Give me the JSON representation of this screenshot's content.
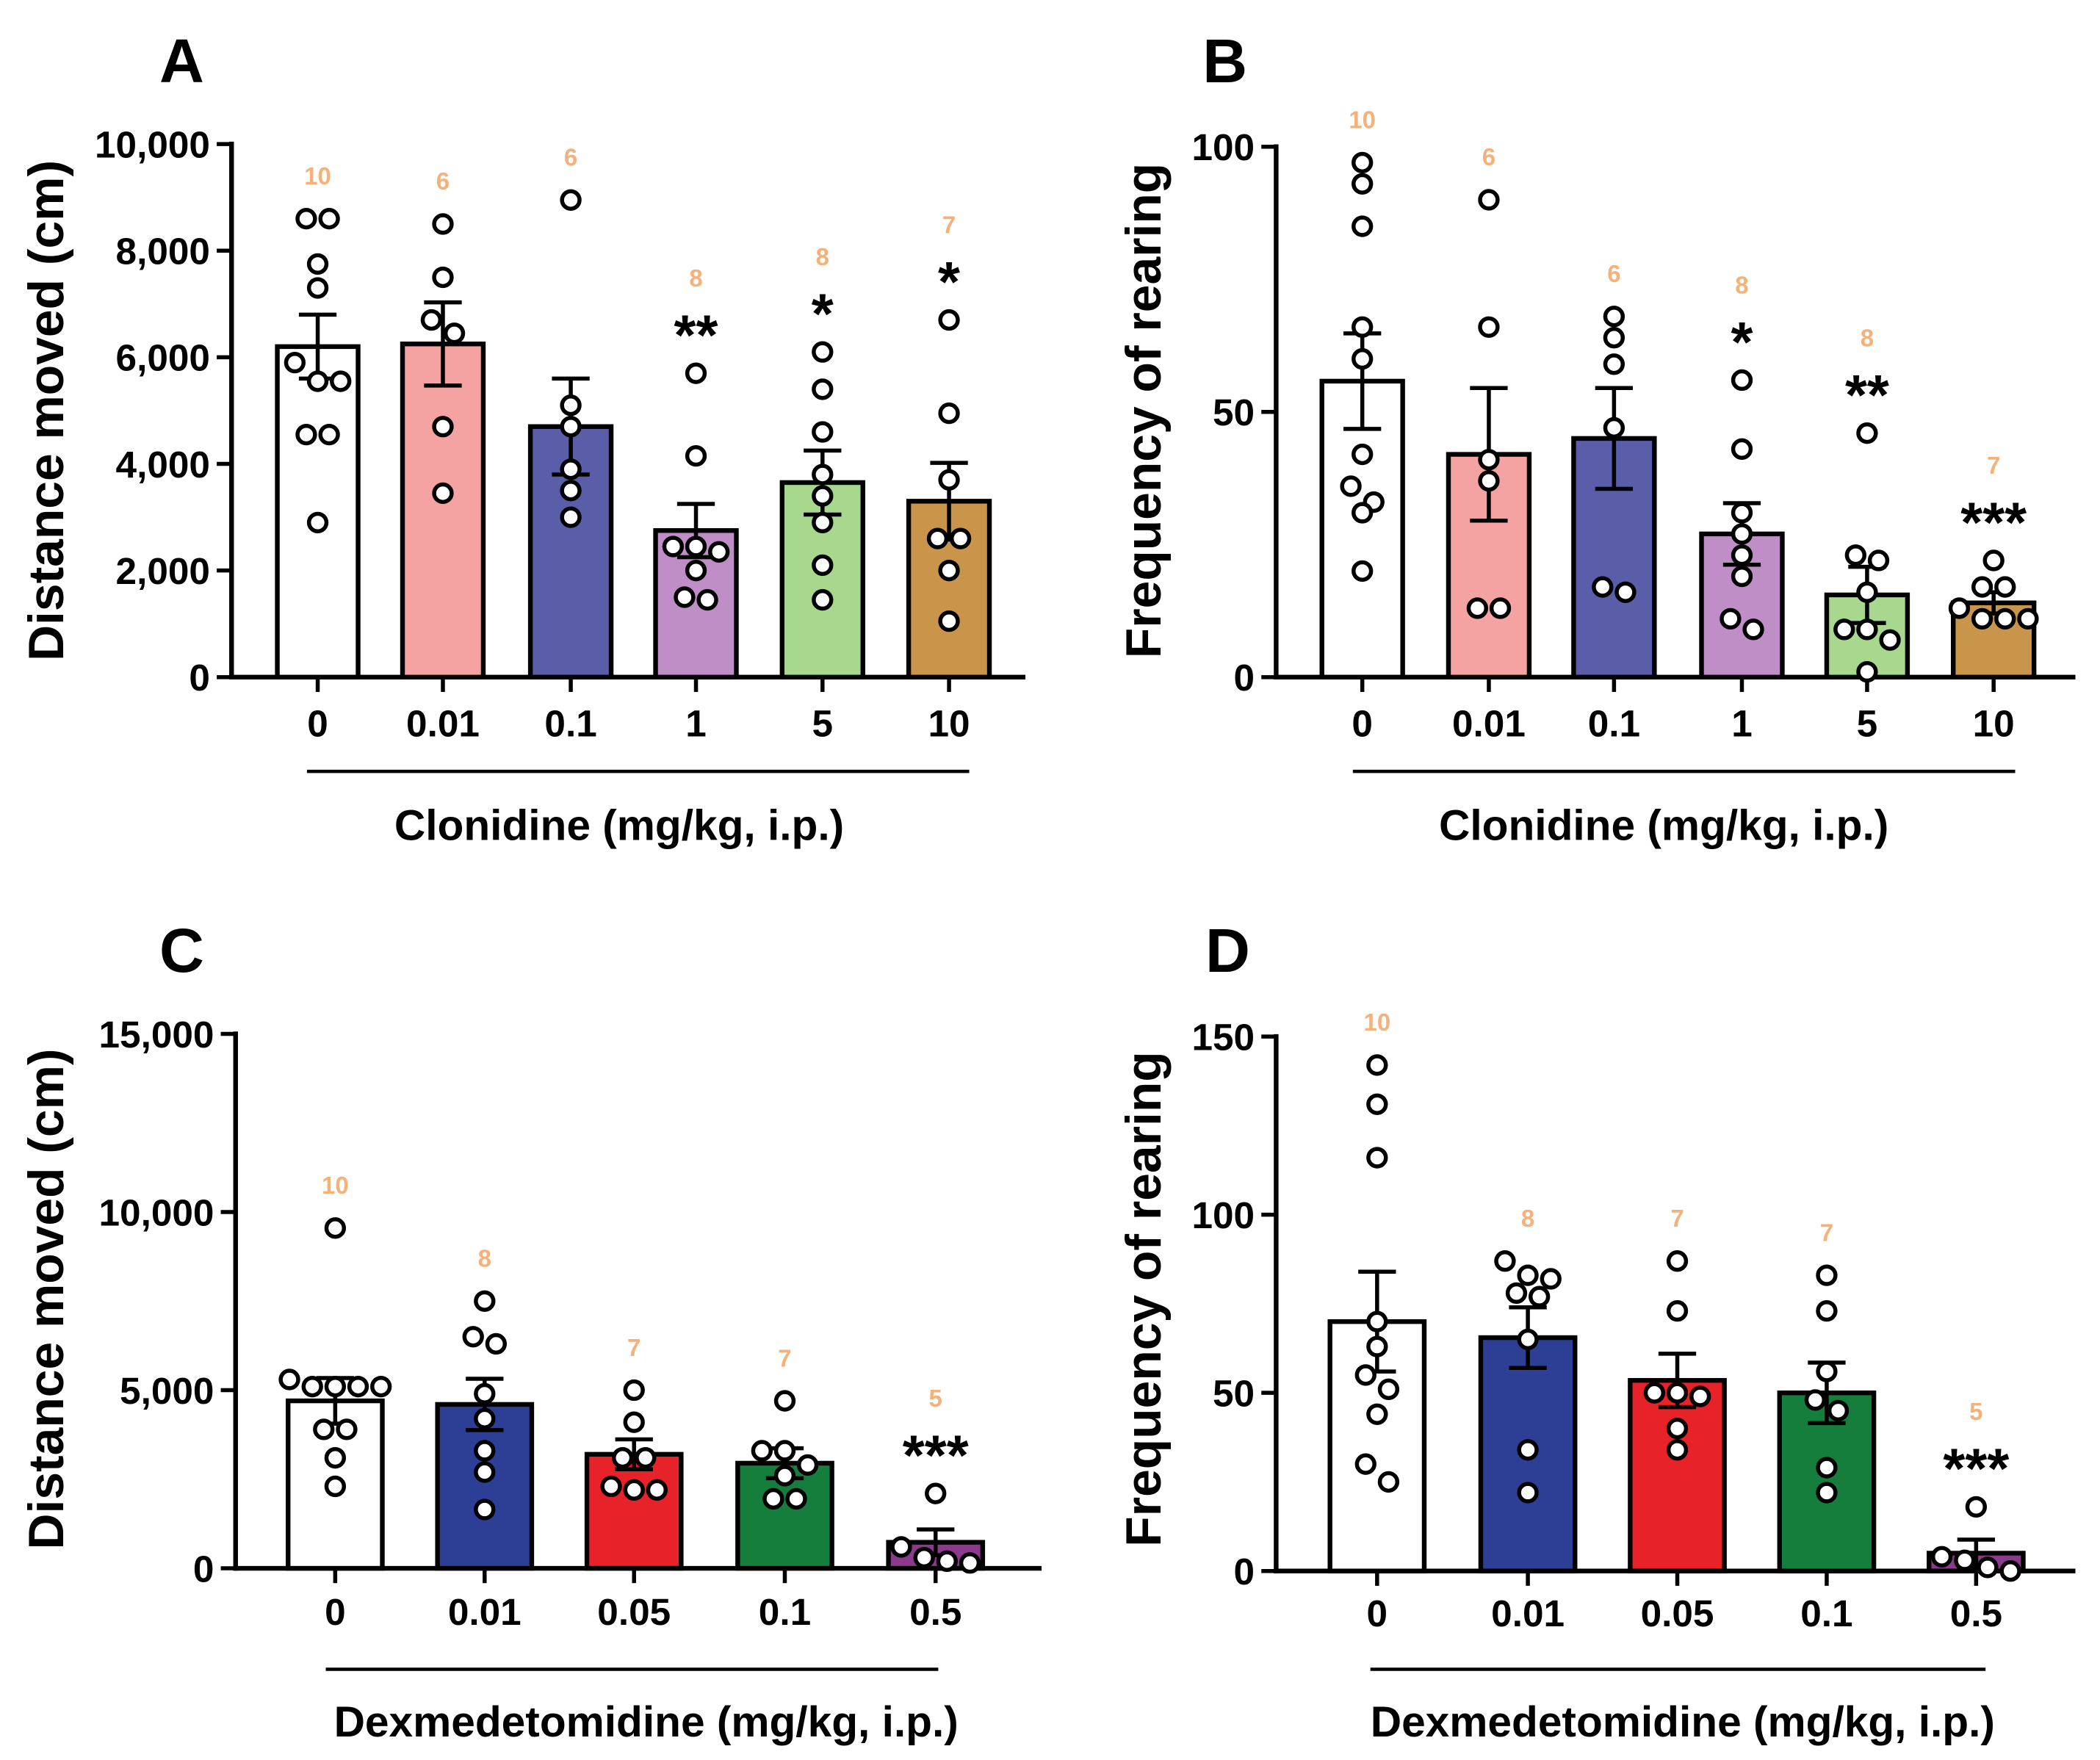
{
  "styles": {
    "n_label_color": "#f2b27a",
    "axis_color": "#000000",
    "point_fill": "#ffffff"
  },
  "chart_data": [
    {
      "panel": "A",
      "type": "bar",
      "categories": [
        "0",
        "0.01",
        "0.1",
        "1",
        "5",
        "10"
      ],
      "values": [
        6200,
        6250,
        4700,
        2750,
        3650,
        3300
      ],
      "sem": [
        600,
        780,
        900,
        500,
        600,
        720
      ],
      "points": [
        [
          8600,
          8600,
          7750,
          7300,
          5900,
          5550,
          5550,
          4550,
          4550,
          2900
        ],
        [
          8500,
          7500,
          6700,
          6450,
          4700,
          3450
        ],
        [
          8950,
          5100,
          4700,
          3900,
          3500,
          3000
        ],
        [
          5700,
          4150,
          2450,
          2450,
          2350,
          2000,
          1500,
          1450
        ],
        [
          6100,
          5400,
          4600,
          3800,
          3400,
          2900,
          2100,
          1450
        ],
        [
          6700,
          4950,
          3700,
          2600,
          2600,
          2000,
          1050
        ]
      ],
      "n": [
        10,
        6,
        6,
        8,
        8,
        7
      ],
      "significance": [
        null,
        null,
        null,
        "**",
        "*",
        "*"
      ],
      "colors": [
        "#ffffff",
        "#f4a2a2",
        "#5a5ea8",
        "#c08ec6",
        "#a8d88e",
        "#c8954a"
      ],
      "xlabel": "Clonidine (mg/kg, i.p.)",
      "ylabel": "Distance moved (cm)",
      "ylim": [
        0,
        10000
      ],
      "yticks": [
        0,
        2000,
        4000,
        6000,
        8000,
        10000
      ],
      "ytick_labels": [
        "0",
        "2,000",
        "4,000",
        "6,000",
        "8,000",
        "10,000"
      ]
    },
    {
      "panel": "B",
      "type": "bar",
      "categories": [
        "0",
        "0.01",
        "0.1",
        "1",
        "5",
        "10"
      ],
      "values": [
        55.8,
        42,
        45,
        27,
        15.5,
        14
      ],
      "sem": [
        9,
        12.5,
        9.5,
        5.8,
        5.3,
        2
      ],
      "points": [
        [
          97,
          93,
          85,
          66,
          60,
          42,
          36,
          33,
          31,
          20
        ],
        [
          90,
          66,
          41,
          37,
          13,
          13
        ],
        [
          68,
          64,
          59,
          47,
          17,
          16
        ],
        [
          56,
          43,
          31,
          27,
          23,
          19,
          11,
          9
        ],
        [
          46,
          23,
          22,
          16,
          9,
          9,
          7,
          1
        ],
        [
          22,
          17,
          17,
          13,
          11,
          11,
          11
        ]
      ],
      "n": [
        10,
        6,
        6,
        8,
        8,
        7
      ],
      "significance": [
        null,
        null,
        null,
        "*",
        "**",
        "***"
      ],
      "colors": [
        "#ffffff",
        "#f4a2a2",
        "#5a5ea8",
        "#c08ec6",
        "#a8d88e",
        "#c8954a"
      ],
      "xlabel": "Clonidine (mg/kg, i.p.)",
      "ylabel": "Frequency of rearing",
      "ylim": [
        0,
        100
      ],
      "yticks": [
        0,
        50,
        100
      ],
      "ytick_labels": [
        "0",
        "50",
        "100"
      ]
    },
    {
      "panel": "C",
      "type": "bar",
      "categories": [
        "0",
        "0.01",
        "0.05",
        "0.1",
        "0.5"
      ],
      "values": [
        4700,
        4600,
        3200,
        2950,
        730
      ],
      "sem": [
        640,
        720,
        420,
        420,
        360
      ],
      "points": [
        [
          9550,
          5300,
          5100,
          5100,
          5100,
          5100,
          3900,
          3900,
          3100,
          2300
        ],
        [
          7500,
          6500,
          6300,
          4900,
          4200,
          3300,
          2700,
          1650
        ],
        [
          5000,
          4100,
          3100,
          3100,
          2300,
          2200,
          2200
        ],
        [
          4700,
          3300,
          3300,
          2900,
          2600,
          1950,
          1950
        ],
        [
          2100,
          600,
          300,
          200,
          150
        ]
      ],
      "n": [
        10,
        8,
        7,
        7,
        5
      ],
      "significance": [
        null,
        null,
        null,
        null,
        "***"
      ],
      "colors": [
        "#ffffff",
        "#2d3f94",
        "#e82229",
        "#167e3d",
        "#8c3a8c"
      ],
      "xlabel": "Dexmedetomidine (mg/kg, i.p.)",
      "ylabel": "Distance moved (cm)",
      "ylim": [
        0,
        15000
      ],
      "yticks": [
        0,
        5000,
        10000,
        15000
      ],
      "ytick_labels": [
        "0",
        "5,000",
        "10,000",
        "15,000"
      ]
    },
    {
      "panel": "D",
      "type": "bar",
      "categories": [
        "0",
        "0.01",
        "0.05",
        "0.1",
        "0.5"
      ],
      "values": [
        70,
        65.5,
        53.5,
        50,
        5
      ],
      "sem": [
        14,
        8.5,
        7.5,
        8.5,
        3.8
      ],
      "points": [
        [
          142,
          131,
          116,
          70,
          63,
          55,
          51,
          44,
          30,
          25
        ],
        [
          87,
          83,
          82,
          78,
          77,
          65,
          34,
          22
        ],
        [
          87,
          73,
          50,
          50,
          49,
          40,
          34
        ],
        [
          83,
          73,
          56,
          48,
          45,
          29,
          22
        ],
        [
          18,
          4,
          3,
          1,
          0
        ]
      ],
      "n": [
        10,
        8,
        7,
        7,
        5
      ],
      "significance": [
        null,
        null,
        null,
        null,
        "***"
      ],
      "colors": [
        "#ffffff",
        "#2d3f94",
        "#e82229",
        "#167e3d",
        "#8c3a8c"
      ],
      "xlabel": "Dexmedetomidine (mg/kg, i.p.)",
      "ylabel": "Frequency of rearing",
      "ylim": [
        0,
        150
      ],
      "yticks": [
        0,
        50,
        100,
        150
      ],
      "ytick_labels": [
        "0",
        "50",
        "100",
        "150"
      ]
    }
  ]
}
